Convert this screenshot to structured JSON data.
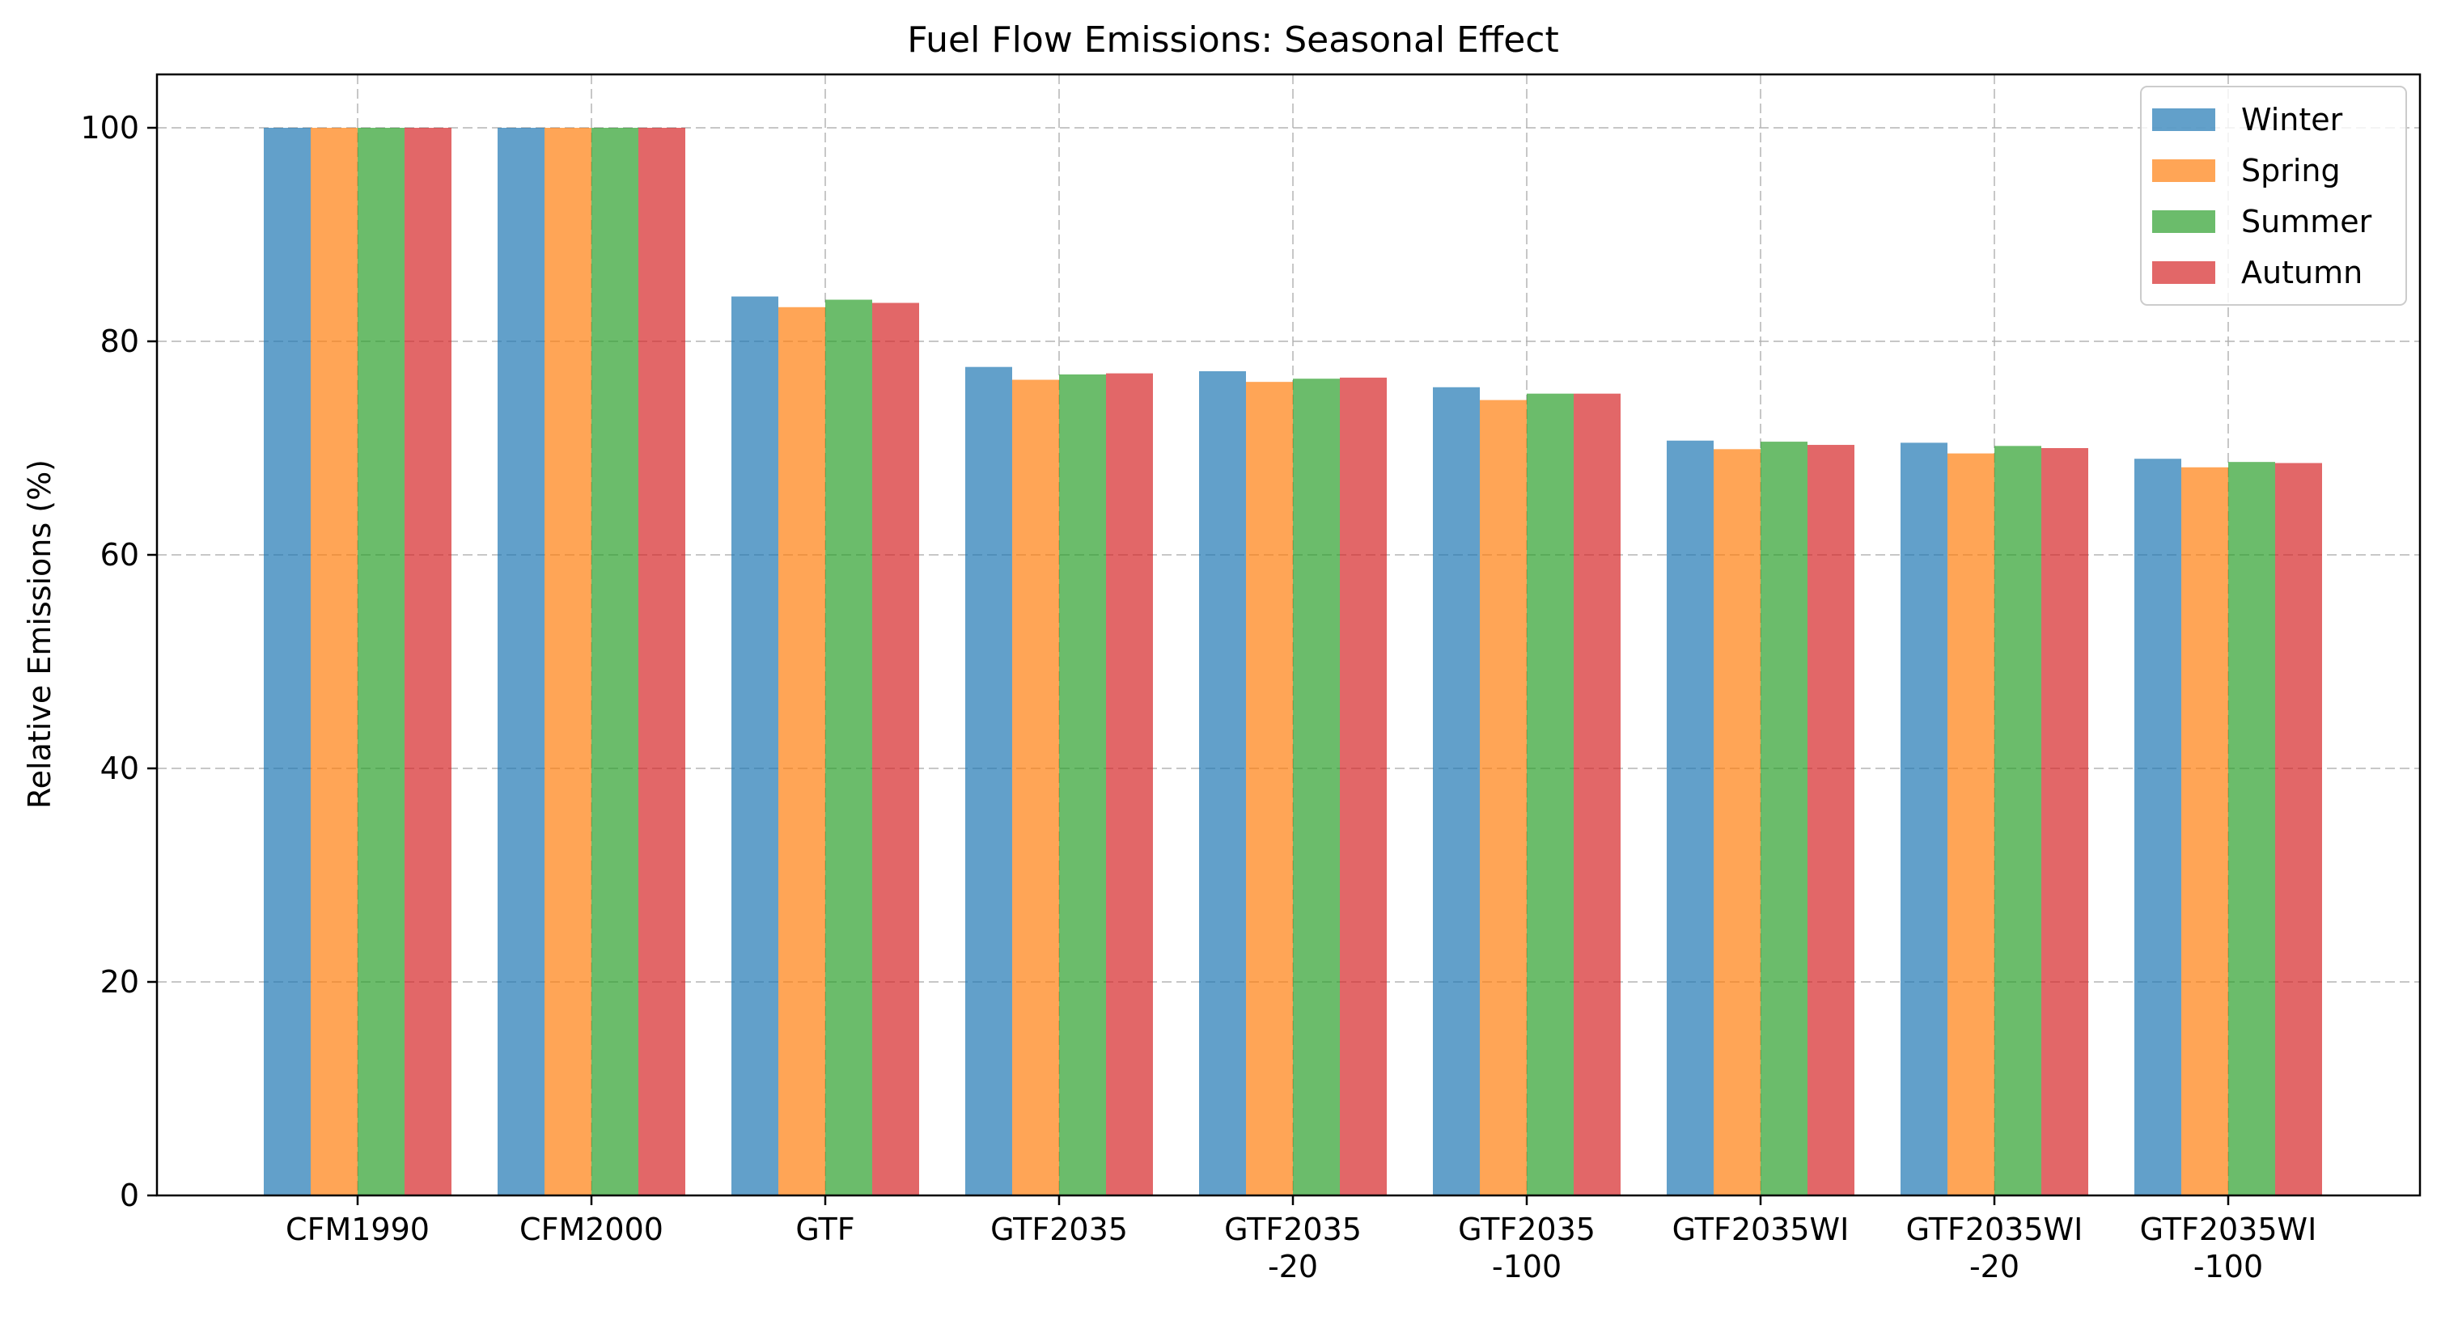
{
  "chart_data": {
    "type": "bar",
    "title": "Fuel Flow Emissions: Seasonal Effect",
    "xlabel": "",
    "ylabel": "Relative Emissions (%)",
    "ylim": [
      0,
      105
    ],
    "yticks": [
      "0",
      "20",
      "40",
      "60",
      "80",
      "100"
    ],
    "grid": true,
    "legend_position": "top-right",
    "categories": [
      [
        "CFM1990"
      ],
      [
        "CFM2000"
      ],
      [
        "GTF"
      ],
      [
        "GTF2035"
      ],
      [
        "GTF2035",
        "-20"
      ],
      [
        "GTF2035",
        "-100"
      ],
      [
        "GTF2035WI"
      ],
      [
        "GTF2035WI",
        "-20"
      ],
      [
        "GTF2035WI",
        "-100"
      ]
    ],
    "series": [
      {
        "name": "Winter",
        "color": "#1f77b4",
        "values": [
          100,
          100,
          84.2,
          77.6,
          77.2,
          75.7,
          70.7,
          70.5,
          69.0
        ]
      },
      {
        "name": "Spring",
        "color": "#ff7f0e",
        "values": [
          100,
          100,
          83.2,
          76.4,
          76.2,
          74.5,
          69.9,
          69.5,
          68.2
        ]
      },
      {
        "name": "Summer",
        "color": "#2ca02c",
        "values": [
          100,
          100,
          83.9,
          76.9,
          76.5,
          75.1,
          70.6,
          70.2,
          68.7
        ]
      },
      {
        "name": "Autumn",
        "color": "#d62728",
        "values": [
          100,
          100,
          83.6,
          77.0,
          76.6,
          75.1,
          70.3,
          70.0,
          68.6
        ]
      }
    ]
  }
}
